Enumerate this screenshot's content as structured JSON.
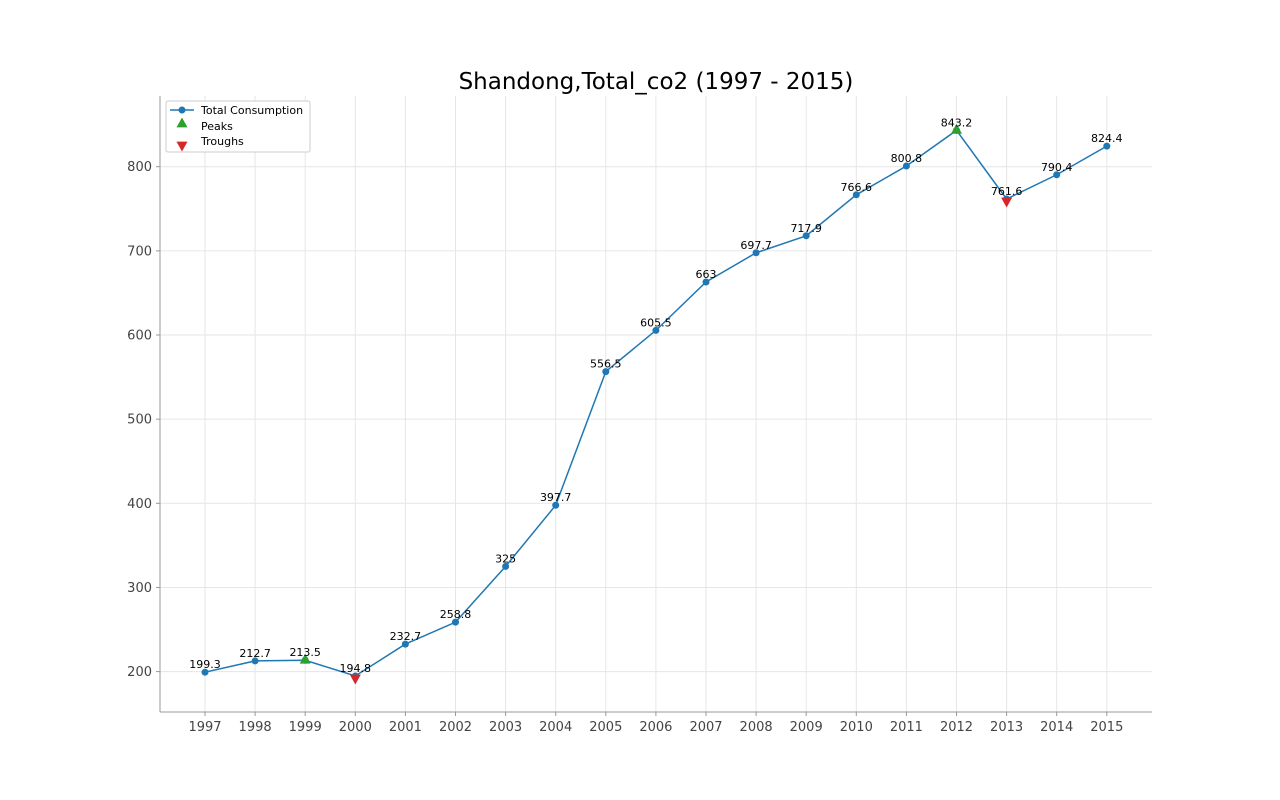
{
  "chart_data": {
    "type": "line",
    "title": "Shandong,Total_co2 (1997 - 2015)",
    "xlabel": "",
    "ylabel": "",
    "categories": [
      "1997",
      "1998",
      "1999",
      "2000",
      "2001",
      "2002",
      "2003",
      "2004",
      "2005",
      "2006",
      "2007",
      "2008",
      "2009",
      "2010",
      "2011",
      "2012",
      "2013",
      "2014",
      "2015"
    ],
    "series": [
      {
        "name": "Total Consumption",
        "color": "#1f77b4",
        "values": [
          199.3,
          212.7,
          213.5,
          194.8,
          232.7,
          258.8,
          325,
          397.7,
          556.5,
          605.5,
          663,
          697.7,
          717.9,
          766.6,
          800.8,
          843.2,
          761.6,
          790.4,
          824.4
        ],
        "labels": [
          "199.3",
          "212.7",
          "213.5",
          "194.8",
          "232.7",
          "258.8",
          "325",
          "397.7",
          "556.5",
          "605.5",
          "663",
          "697.7",
          "717.9",
          "766.6",
          "800.8",
          "843.2",
          "761.6",
          "790.4",
          "824.4"
        ]
      }
    ],
    "peaks": {
      "name": "Peaks",
      "color": "#2ca02c",
      "x": [
        "1999",
        "2012"
      ],
      "values": [
        213.5,
        843.2
      ]
    },
    "troughs": {
      "name": "Troughs",
      "color": "#d62728",
      "x": [
        "2000",
        "2013"
      ],
      "values": [
        194.8,
        761.6
      ]
    },
    "y_ticks": [
      200,
      300,
      400,
      500,
      600,
      700,
      800
    ],
    "ylim": [
      152,
      884
    ],
    "grid": true,
    "legend_position": "top-left"
  }
}
